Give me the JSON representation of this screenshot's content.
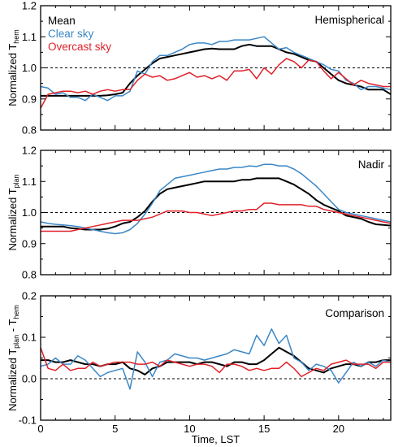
{
  "chart_data": [
    {
      "type": "line",
      "title": "Hemispherical",
      "ylabel": "Normalized T",
      "ylabel_sub": "hem",
      "ylabel_sub2": "",
      "ylabel_mid": "",
      "xlim": [
        0,
        23.5
      ],
      "ylim": [
        0.8,
        1.2
      ],
      "yticks": [
        "0.8",
        "0.9",
        "1.0",
        "1.1",
        "1.2"
      ],
      "ytick_values": [
        0.8,
        0.9,
        1.0,
        1.1,
        1.2
      ],
      "reference_line": 1.0,
      "legend": [
        "Mean",
        "Clear sky",
        "Overcast sky"
      ],
      "x": [
        0,
        0.5,
        1,
        1.5,
        2,
        2.5,
        3,
        3.5,
        4,
        4.5,
        5,
        5.5,
        6,
        6.5,
        7,
        7.5,
        8,
        8.5,
        9,
        9.5,
        10,
        10.5,
        11,
        11.5,
        12,
        12.5,
        13,
        13.5,
        14,
        14.5,
        15,
        15.5,
        16,
        16.5,
        17,
        17.5,
        18,
        18.5,
        19,
        19.5,
        20,
        20.5,
        21,
        21.5,
        22,
        22.5,
        23,
        23.5
      ],
      "series": [
        {
          "name": "Mean",
          "color": "#000000",
          "values": [
            0.91,
            0.91,
            0.91,
            0.91,
            0.91,
            0.91,
            0.91,
            0.91,
            0.91,
            0.912,
            0.915,
            0.92,
            0.95,
            0.975,
            0.995,
            1.015,
            1.03,
            1.035,
            1.04,
            1.045,
            1.05,
            1.055,
            1.06,
            1.062,
            1.06,
            1.06,
            1.06,
            1.07,
            1.075,
            1.07,
            1.07,
            1.07,
            1.06,
            1.05,
            1.045,
            1.035,
            1.025,
            1.02,
            1.0,
            0.98,
            0.96,
            0.95,
            0.945,
            0.94,
            0.93,
            0.93,
            0.93,
            0.915
          ]
        },
        {
          "name": "Clear sky",
          "color": "#3a87c7",
          "values": [
            0.94,
            0.935,
            0.915,
            0.92,
            0.905,
            0.905,
            0.895,
            0.915,
            0.905,
            0.895,
            0.91,
            0.91,
            0.925,
            0.99,
            0.98,
            1.02,
            1.04,
            1.04,
            1.05,
            1.06,
            1.075,
            1.08,
            1.08,
            1.075,
            1.085,
            1.085,
            1.09,
            1.09,
            1.09,
            1.095,
            1.1,
            1.08,
            1.06,
            1.065,
            1.05,
            1.04,
            1.03,
            1.02,
            1.01,
            0.995,
            0.99,
            0.96,
            0.95,
            0.93,
            0.94,
            0.94,
            0.935,
            0.93
          ]
        },
        {
          "name": "Overcast sky",
          "color": "#e0202a",
          "values": [
            0.87,
            0.915,
            0.92,
            0.925,
            0.925,
            0.92,
            0.925,
            0.915,
            0.925,
            0.93,
            0.925,
            0.93,
            0.93,
            0.96,
            0.98,
            0.97,
            0.975,
            0.96,
            0.965,
            0.975,
            0.985,
            0.97,
            0.975,
            0.965,
            0.975,
            0.96,
            0.99,
            0.99,
            0.995,
            0.965,
            1.0,
            0.98,
            1.01,
            1.03,
            1.02,
            1.0,
            1.025,
            1.02,
            0.99,
            0.965,
            0.985,
            0.965,
            0.945,
            0.96,
            0.95,
            0.945,
            0.94,
            0.94
          ]
        }
      ]
    },
    {
      "type": "line",
      "title": "Nadir",
      "ylabel": "Normalized T",
      "ylabel_sub": "plan",
      "ylabel_sub2": "",
      "ylabel_mid": "",
      "xlim": [
        0,
        23.5
      ],
      "ylim": [
        0.8,
        1.2
      ],
      "yticks": [
        "0.8",
        "0.9",
        "1.0",
        "1.1",
        "1.2"
      ],
      "ytick_values": [
        0.8,
        0.9,
        1.0,
        1.1,
        1.2
      ],
      "reference_line": 1.0,
      "x": [
        0,
        0.5,
        1,
        1.5,
        2,
        2.5,
        3,
        3.5,
        4,
        4.5,
        5,
        5.5,
        6,
        6.5,
        7,
        7.5,
        8,
        8.5,
        9,
        9.5,
        10,
        10.5,
        11,
        11.5,
        12,
        12.5,
        13,
        13.5,
        14,
        14.5,
        15,
        15.5,
        16,
        16.5,
        17,
        17.5,
        18,
        18.5,
        19,
        19.5,
        20,
        20.5,
        21,
        21.5,
        22,
        22.5,
        23,
        23.5
      ],
      "series": [
        {
          "name": "Mean",
          "color": "#000000",
          "values": [
            0.955,
            0.955,
            0.955,
            0.955,
            0.95,
            0.948,
            0.945,
            0.945,
            0.945,
            0.948,
            0.955,
            0.965,
            0.97,
            0.985,
            1.005,
            1.035,
            1.06,
            1.075,
            1.08,
            1.085,
            1.09,
            1.095,
            1.1,
            1.1,
            1.1,
            1.1,
            1.1,
            1.105,
            1.105,
            1.11,
            1.11,
            1.11,
            1.11,
            1.1,
            1.09,
            1.075,
            1.06,
            1.04,
            1.025,
            1.015,
            1.005,
            0.99,
            0.985,
            0.98,
            0.97,
            0.962,
            0.96,
            0.958
          ]
        },
        {
          "name": "Clear sky",
          "color": "#3a87c7",
          "values": [
            0.97,
            0.965,
            0.962,
            0.96,
            0.958,
            0.955,
            0.95,
            0.945,
            0.94,
            0.935,
            0.932,
            0.935,
            0.945,
            0.965,
            0.995,
            1.03,
            1.07,
            1.09,
            1.11,
            1.115,
            1.12,
            1.125,
            1.13,
            1.135,
            1.14,
            1.14,
            1.145,
            1.145,
            1.15,
            1.148,
            1.155,
            1.155,
            1.15,
            1.15,
            1.14,
            1.125,
            1.105,
            1.085,
            1.06,
            1.035,
            1.01,
            1.0,
            0.995,
            0.99,
            0.985,
            0.98,
            0.975,
            0.97
          ]
        },
        {
          "name": "Overcast sky",
          "color": "#e0202a",
          "values": [
            0.94,
            0.94,
            0.94,
            0.94,
            0.94,
            0.945,
            0.95,
            0.955,
            0.96,
            0.965,
            0.97,
            0.975,
            0.975,
            0.975,
            0.98,
            0.985,
            0.995,
            1.005,
            1.005,
            1.005,
            1.0,
            1.0,
            0.995,
            0.99,
            0.995,
            1.0,
            1.005,
            1.005,
            1.01,
            1.01,
            1.03,
            1.03,
            1.025,
            1.025,
            1.025,
            1.025,
            1.02,
            1.02,
            1.01,
            1.005,
            1.0,
            0.995,
            0.99,
            0.985,
            0.98,
            0.975,
            0.97,
            0.965
          ]
        }
      ]
    },
    {
      "type": "line",
      "title": "Comparison",
      "ylabel": "Normalized T",
      "ylabel_sub": "plan",
      "ylabel_mid": " - T",
      "ylabel_sub2": "hem",
      "xlabel": "Time, LST",
      "xlim": [
        0,
        23.5
      ],
      "ylim": [
        -0.1,
        0.2
      ],
      "yticks": [
        "-0.1",
        "0.0",
        "0.1",
        "0.2"
      ],
      "ytick_values": [
        -0.1,
        0.0,
        0.1,
        0.2
      ],
      "xticks": [
        "0",
        "5",
        "10",
        "15",
        "20"
      ],
      "xtick_values": [
        0,
        5,
        10,
        15,
        20
      ],
      "reference_line": 0.0,
      "x": [
        0,
        0.5,
        1,
        1.5,
        2,
        2.5,
        3,
        3.5,
        4,
        4.5,
        5,
        5.5,
        6,
        6.5,
        7,
        7.5,
        8,
        8.5,
        9,
        9.5,
        10,
        10.5,
        11,
        11.5,
        12,
        12.5,
        13,
        13.5,
        14,
        14.5,
        15,
        15.5,
        16,
        16.5,
        17,
        17.5,
        18,
        18.5,
        19,
        19.5,
        20,
        20.5,
        21,
        21.5,
        22,
        22.5,
        23,
        23.5
      ],
      "series": [
        {
          "name": "Mean",
          "color": "#000000",
          "values": [
            0.045,
            0.045,
            0.04,
            0.04,
            0.045,
            0.04,
            0.035,
            0.035,
            0.03,
            0.035,
            0.035,
            0.04,
            0.025,
            0.02,
            0.01,
            0.025,
            0.03,
            0.04,
            0.04,
            0.04,
            0.04,
            0.035,
            0.04,
            0.04,
            0.035,
            0.03,
            0.04,
            0.04,
            0.035,
            0.035,
            0.045,
            0.06,
            0.075,
            0.065,
            0.055,
            0.04,
            0.025,
            0.02,
            0.015,
            0.025,
            0.03,
            0.035,
            0.035,
            0.03,
            0.04,
            0.04,
            0.045,
            0.045
          ]
        },
        {
          "name": "Clear sky",
          "color": "#3a87c7",
          "values": [
            0.03,
            0.035,
            0.05,
            0.035,
            0.035,
            0.055,
            0.045,
            0.025,
            0.005,
            0.015,
            0.02,
            0.025,
            -0.025,
            0.065,
            0.04,
            0.005,
            0.04,
            0.045,
            0.06,
            0.055,
            0.05,
            0.05,
            0.045,
            0.05,
            0.055,
            0.06,
            0.07,
            0.065,
            0.06,
            0.105,
            0.08,
            0.12,
            0.085,
            0.105,
            0.05,
            0.04,
            0.02,
            0.035,
            0.03,
            0.02,
            -0.01,
            0.015,
            0.04,
            0.03,
            0.04,
            0.03,
            0.045,
            0.04
          ]
        },
        {
          "name": "Overcast sky",
          "color": "#e0202a",
          "values": [
            0.075,
            0.025,
            0.02,
            0.035,
            0.02,
            0.025,
            0.025,
            0.04,
            0.03,
            0.035,
            0.04,
            0.04,
            0.04,
            0.035,
            0.035,
            0.04,
            0.03,
            0.045,
            0.04,
            0.035,
            0.03,
            0.035,
            0.035,
            0.03,
            0.015,
            0.035,
            0.035,
            0.03,
            0.02,
            0.025,
            0.02,
            0.025,
            0.025,
            0.04,
            0.025,
            0.005,
            0.015,
            0.025,
            0.02,
            0.035,
            0.04,
            0.045,
            0.035,
            0.035,
            0.035,
            0.025,
            0.04,
            0.04
          ]
        }
      ]
    }
  ]
}
